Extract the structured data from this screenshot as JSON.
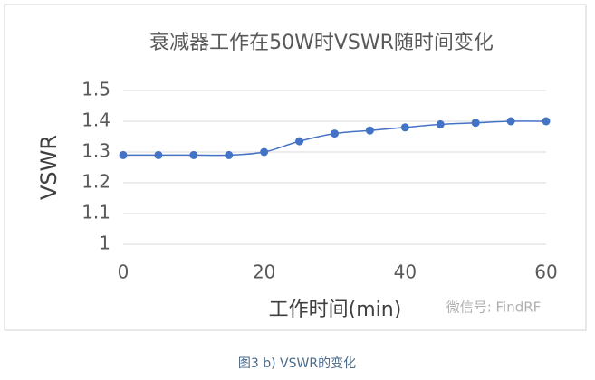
{
  "chart_data": {
    "type": "line",
    "title": "衰减器工作在50W时VSWR随时间变化",
    "x_label": "工作时间(min)",
    "y_label": "VSWR",
    "x": [
      0,
      5,
      10,
      15,
      20,
      25,
      30,
      35,
      40,
      45,
      50,
      55,
      60
    ],
    "series": [
      {
        "name": "VSWR",
        "color": "#4472c4",
        "values": [
          1.29,
          1.29,
          1.29,
          1.29,
          1.3,
          1.335,
          1.36,
          1.37,
          1.38,
          1.39,
          1.395,
          1.4,
          1.4
        ]
      }
    ],
    "xlim": [
      0,
      60
    ],
    "xticks": [
      0,
      20,
      40,
      60
    ],
    "ylim": [
      1,
      1.5
    ],
    "yticks": [
      1,
      1.1,
      1.2,
      1.3,
      1.4,
      1.5
    ],
    "grid": true,
    "watermark": "微信号: FindRF",
    "caption": "图3   b) VSWR的变化"
  }
}
